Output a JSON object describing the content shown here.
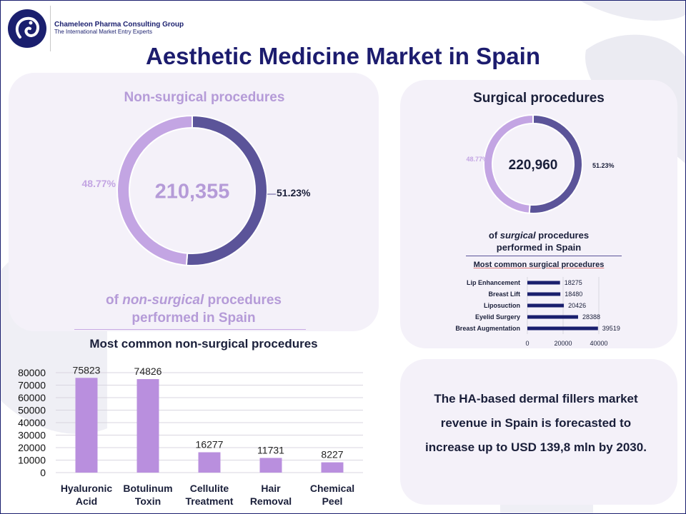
{
  "brand": {
    "name": "Chameleon Pharma Consulting Group",
    "tagline": "The International Market Entry Experts"
  },
  "title": "Aesthetic Medicine Market in Spain",
  "colors": {
    "dark": "#5b5499",
    "light": "#c3a5e3",
    "bar": "#b98fde",
    "navy": "#1a1f6e"
  },
  "nonsurgical": {
    "heading": "Non-surgical procedures",
    "total": "210,355",
    "caption_line1_pre": "of ",
    "caption_line1_em": "non-surgical",
    "caption_line1_post": " procedures",
    "caption_line2": "performed in Spain",
    "chart_heading": "Most common non-surgical procedures"
  },
  "surgical": {
    "heading": "Surgical procedures",
    "total": "220,960",
    "caption_line1_pre": "of ",
    "caption_line1_em": "surgical",
    "caption_line1_post": " procedures",
    "caption_line2": "performed in Spain",
    "chart_heading": "Most common surgical procedures"
  },
  "insight": "The HA-based dermal fillers market revenue in Spain is forecasted to increase up to USD 139,8 mln by 2030.",
  "chart_data": [
    {
      "type": "pie",
      "title": "Non-surgical procedures",
      "slices": [
        {
          "label": "51.23%",
          "value": 51.23,
          "color": "#5b5499"
        },
        {
          "label": "48.77%",
          "value": 48.77,
          "color": "#c3a5e3"
        }
      ]
    },
    {
      "type": "pie",
      "title": "Surgical procedures",
      "slices": [
        {
          "label": "51.23%",
          "value": 51.23,
          "color": "#5b5499"
        },
        {
          "label": "48.77%",
          "value": 48.77,
          "color": "#c3a5e3"
        }
      ]
    },
    {
      "type": "bar",
      "title": "Most common non-surgical procedures",
      "categories": [
        [
          "Hyaluronic",
          "Acid"
        ],
        [
          "Botulinum",
          "Toxin"
        ],
        [
          "Cellulite",
          "Treatment"
        ],
        [
          "Hair",
          "Removal"
        ],
        [
          "Chemical",
          "Peel"
        ]
      ],
      "values": [
        75823,
        74826,
        16277,
        11731,
        8227
      ],
      "ylim": [
        0,
        80000
      ],
      "yticks": [
        0,
        10000,
        20000,
        30000,
        40000,
        50000,
        60000,
        70000,
        80000
      ],
      "grid": true
    },
    {
      "type": "bar",
      "orientation": "horizontal",
      "title": "Most common surgical procedures",
      "categories": [
        "Lip Enhancement",
        "Breast Lift",
        "Liposuction",
        "Eyelid Surgery",
        "Breast Augmentation"
      ],
      "values": [
        18275,
        18480,
        20426,
        28388,
        39519
      ],
      "xlim": [
        0,
        40000
      ],
      "xticks": [
        0,
        20000,
        40000
      ],
      "grid": true
    }
  ]
}
